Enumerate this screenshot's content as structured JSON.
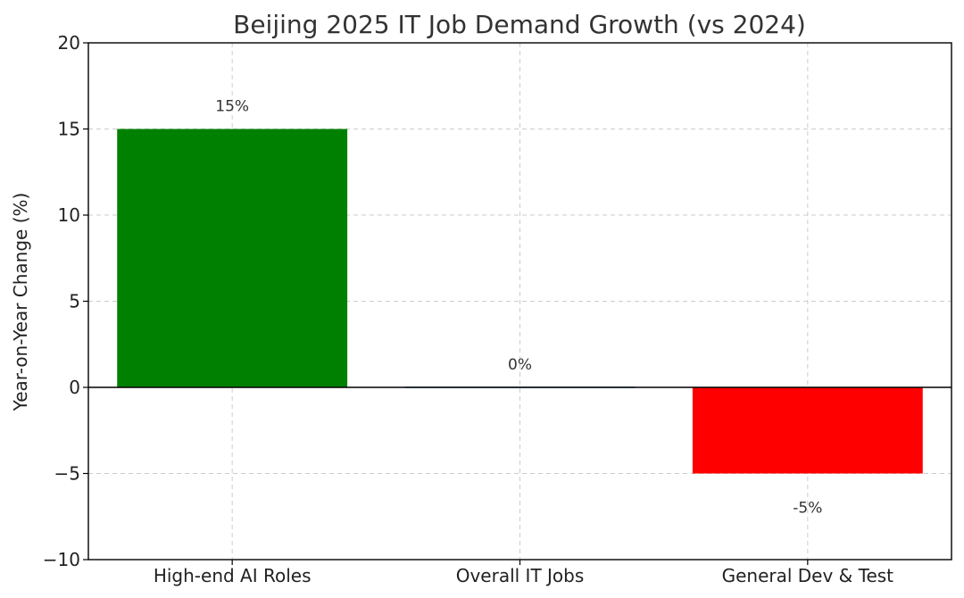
{
  "chart_data": {
    "type": "bar",
    "title": "Beijing 2025 IT Job Demand Growth (vs 2024)",
    "xlabel": "",
    "ylabel": "Year-on-Year Change (%)",
    "categories": [
      "High-end AI Roles",
      "Overall IT Jobs",
      "General Dev & Test"
    ],
    "values": [
      15,
      0,
      -5
    ],
    "data_labels": [
      "15%",
      "0%",
      "-5%"
    ],
    "colors": [
      "#008000",
      "#1f77b4",
      "#ff0000"
    ],
    "ylim": [
      -10,
      20
    ],
    "yticks": [
      -10,
      -5,
      0,
      5,
      10,
      15,
      20
    ],
    "ytick_labels": [
      "−10",
      "−5",
      "0",
      "5",
      "10",
      "15",
      "20"
    ],
    "grid": true
  }
}
